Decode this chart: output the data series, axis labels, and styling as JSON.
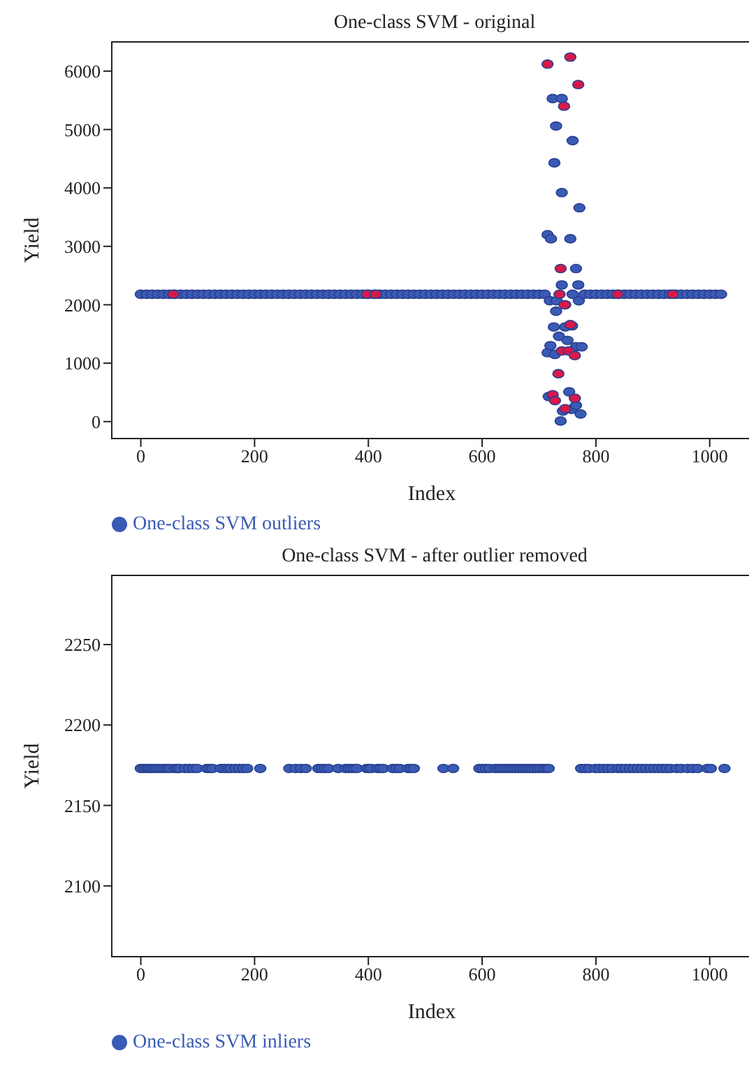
{
  "chart_data": [
    {
      "type": "scatter",
      "title": "One-class SVM - original",
      "xlabel": "Index",
      "ylabel": "Yield",
      "xlim": [
        -51,
        1074
      ],
      "ylim": [
        -290,
        6500
      ],
      "xticks": [
        0,
        200,
        400,
        600,
        800,
        1000
      ],
      "yticks": [
        0,
        1000,
        2000,
        3000,
        4000,
        5000,
        6000
      ],
      "legend": "bottom left",
      "marker": "circle",
      "series": [
        {
          "name": "One-class SVM outliers",
          "color": "#3a5bb5",
          "x": [
            0,
            10,
            20,
            30,
            40,
            50,
            60,
            70,
            80,
            90,
            100,
            110,
            120,
            130,
            140,
            150,
            160,
            170,
            180,
            190,
            200,
            210,
            220,
            230,
            240,
            250,
            260,
            270,
            280,
            290,
            300,
            310,
            320,
            330,
            340,
            350,
            360,
            370,
            380,
            390,
            400,
            410,
            420,
            430,
            440,
            450,
            460,
            470,
            480,
            490,
            500,
            510,
            520,
            530,
            540,
            550,
            560,
            570,
            580,
            590,
            600,
            610,
            620,
            630,
            640,
            650,
            660,
            670,
            680,
            690,
            700,
            710,
            715,
            715,
            717,
            719,
            720,
            721,
            724,
            726,
            727,
            728,
            730,
            730,
            731,
            735,
            738,
            740,
            740,
            740,
            742,
            746,
            746,
            750,
            753,
            755,
            757,
            758,
            759,
            759,
            765,
            765,
            765,
            769,
            770,
            771,
            773,
            775,
            780,
            790,
            800,
            810,
            820,
            830,
            840,
            850,
            860,
            870,
            880,
            890,
            900,
            910,
            920,
            930,
            940,
            950,
            960,
            970,
            980,
            990,
            1000,
            1010,
            1020
          ],
          "values": [
            2180,
            2180,
            2180,
            2180,
            2180,
            2180,
            2180,
            2180,
            2180,
            2180,
            2180,
            2180,
            2180,
            2180,
            2180,
            2180,
            2180,
            2180,
            2180,
            2180,
            2180,
            2180,
            2180,
            2180,
            2180,
            2180,
            2180,
            2180,
            2180,
            2180,
            2180,
            2180,
            2180,
            2180,
            2180,
            2180,
            2180,
            2180,
            2180,
            2180,
            2180,
            2180,
            2180,
            2180,
            2180,
            2180,
            2180,
            2180,
            2180,
            2180,
            2180,
            2180,
            2180,
            2180,
            2180,
            2180,
            2180,
            2180,
            2180,
            2180,
            2180,
            2180,
            2180,
            2180,
            2180,
            2180,
            2180,
            2180,
            2180,
            2180,
            2180,
            2180,
            3200,
            1180,
            430,
            2070,
            1300,
            3130,
            5530,
            1620,
            4430,
            1150,
            5060,
            1890,
            2070,
            1460,
            10,
            5530,
            3920,
            2340,
            180,
            2000,
            1620,
            1390,
            510,
            3130,
            210,
            1640,
            4810,
            2180,
            2620,
            1280,
            280,
            2340,
            2070,
            3660,
            130,
            1280,
            2180,
            2180,
            2180,
            2180,
            2180,
            2180,
            2180,
            2180,
            2180,
            2180,
            2180,
            2180,
            2180,
            2180,
            2180,
            2180,
            2180,
            2180,
            2180,
            2180,
            2180,
            2180,
            2180,
            2180,
            2180
          ]
        },
        {
          "color": "#d8194a",
          "x": [
            57,
            398,
            413,
            715,
            724,
            728,
            734,
            736,
            738,
            740,
            744,
            745,
            746,
            752,
            755,
            755,
            763,
            763,
            769,
            838,
            935
          ],
          "values": [
            2180,
            2180,
            2180,
            6120,
            460,
            360,
            820,
            2180,
            2620,
            1210,
            5400,
            2000,
            220,
            1210,
            6240,
            1660,
            1130,
            400,
            5770,
            2180,
            2180
          ]
        }
      ]
    },
    {
      "type": "scatter",
      "title": "One-class SVM - after outlier removed",
      "xlabel": "Index",
      "ylabel": "Yield",
      "xlim": [
        -51,
        1074
      ],
      "ylim": [
        2056,
        2293
      ],
      "xticks": [
        0,
        200,
        400,
        600,
        800,
        1000
      ],
      "yticks": [
        2100,
        2150,
        2200,
        2250
      ],
      "legend": "bottom left",
      "marker": "circle",
      "series": [
        {
          "name": "One-class SVM inliers",
          "color": "#3a5bb5",
          "x": [
            0,
            5,
            10,
            14,
            18,
            23,
            28,
            33,
            38,
            43,
            48,
            52,
            60,
            64,
            68,
            78,
            85,
            92,
            99,
            116,
            121,
            126,
            141,
            147,
            153,
            158,
            166,
            173,
            180,
            187,
            210,
            261,
            272,
            281,
            290,
            312,
            318,
            324,
            330,
            347,
            360,
            365,
            370,
            375,
            380,
            397,
            401,
            405,
            416,
            421,
            426,
            443,
            449,
            455,
            470,
            475,
            480,
            532,
            549,
            595,
            601,
            607,
            613,
            623,
            628,
            633,
            638,
            643,
            648,
            653,
            658,
            663,
            668,
            673,
            678,
            683,
            688,
            693,
            698,
            703,
            708,
            713,
            717,
            774,
            781,
            788,
            799,
            806,
            814,
            821,
            829,
            839,
            845,
            852,
            860,
            867,
            874,
            881,
            888,
            896,
            903,
            910,
            917,
            924,
            931,
            942,
            950,
            961,
            970,
            979,
            996,
            1002,
            1026
          ],
          "values": [
            2173,
            2173,
            2173,
            2173,
            2173,
            2173,
            2173,
            2173,
            2173,
            2173,
            2173,
            2173,
            2173,
            2173,
            2173,
            2173,
            2173,
            2173,
            2173,
            2173,
            2173,
            2173,
            2173,
            2173,
            2173,
            2173,
            2173,
            2173,
            2173,
            2173,
            2173,
            2173,
            2173,
            2173,
            2173,
            2173,
            2173,
            2173,
            2173,
            2173,
            2173,
            2173,
            2173,
            2173,
            2173,
            2173,
            2173,
            2173,
            2173,
            2173,
            2173,
            2173,
            2173,
            2173,
            2173,
            2173,
            2173,
            2173,
            2173,
            2173,
            2173,
            2173,
            2173,
            2173,
            2173,
            2173,
            2173,
            2173,
            2173,
            2173,
            2173,
            2173,
            2173,
            2173,
            2173,
            2173,
            2173,
            2173,
            2173,
            2173,
            2173,
            2173,
            2173,
            2173,
            2173,
            2173,
            2173,
            2173,
            2173,
            2173,
            2173,
            2173,
            2173,
            2173,
            2173,
            2173,
            2173,
            2173,
            2173,
            2173,
            2173,
            2173,
            2173,
            2173,
            2173,
            2173,
            2173,
            2173,
            2173,
            2173,
            2173,
            2173,
            2173
          ]
        }
      ]
    }
  ]
}
